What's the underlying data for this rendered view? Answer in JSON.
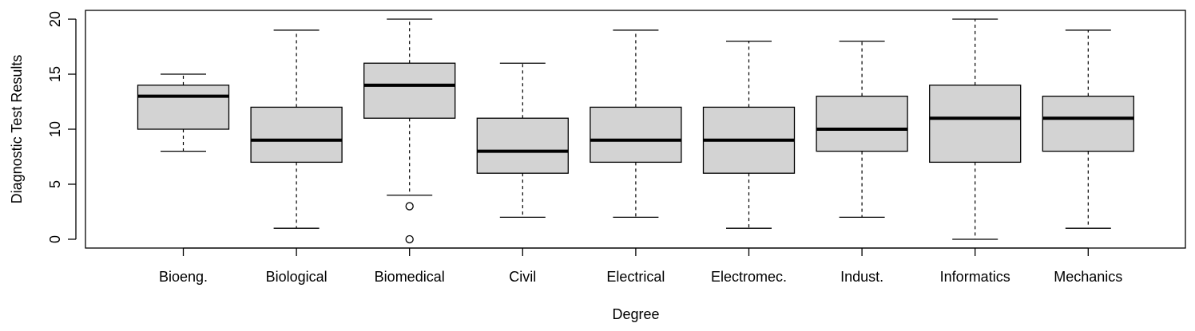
{
  "chart_data": {
    "type": "boxplot",
    "title": "",
    "xlabel": "Degree",
    "ylabel": "Diagnostic Test Results",
    "ylim": [
      -0.8,
      20.8
    ],
    "yticks": [
      0,
      5,
      10,
      15,
      20
    ],
    "grid": false,
    "categories": [
      "Bioeng.",
      "Biological",
      "Biomedical",
      "Civil",
      "Electrical",
      "Electromec.",
      "Indust.",
      "Informatics",
      "Mechanics"
    ],
    "boxes": [
      {
        "category": "Bioeng.",
        "whisker_low": 8,
        "q1": 10,
        "median": 13,
        "q3": 14,
        "whisker_high": 15,
        "outliers": []
      },
      {
        "category": "Biological",
        "whisker_low": 1,
        "q1": 7,
        "median": 9,
        "q3": 12,
        "whisker_high": 19,
        "outliers": []
      },
      {
        "category": "Biomedical",
        "whisker_low": 4,
        "q1": 11,
        "median": 14,
        "q3": 16,
        "whisker_high": 20,
        "outliers": [
          3,
          0
        ]
      },
      {
        "category": "Civil",
        "whisker_low": 2,
        "q1": 6,
        "median": 8,
        "q3": 11,
        "whisker_high": 16,
        "outliers": []
      },
      {
        "category": "Electrical",
        "whisker_low": 2,
        "q1": 7,
        "median": 9,
        "q3": 12,
        "whisker_high": 19,
        "outliers": []
      },
      {
        "category": "Electromec.",
        "whisker_low": 1,
        "q1": 6,
        "median": 9,
        "q3": 12,
        "whisker_high": 18,
        "outliers": []
      },
      {
        "category": "Indust.",
        "whisker_low": 2,
        "q1": 8,
        "median": 10,
        "q3": 13,
        "whisker_high": 18,
        "outliers": []
      },
      {
        "category": "Informatics",
        "whisker_low": 0,
        "q1": 7,
        "median": 11,
        "q3": 14,
        "whisker_high": 20,
        "outliers": []
      },
      {
        "category": "Mechanics",
        "whisker_low": 1,
        "q1": 8,
        "median": 11,
        "q3": 13,
        "whisker_high": 19,
        "outliers": []
      }
    ],
    "colors": {
      "box_fill": "#d3d3d3",
      "stroke": "#000000"
    }
  }
}
